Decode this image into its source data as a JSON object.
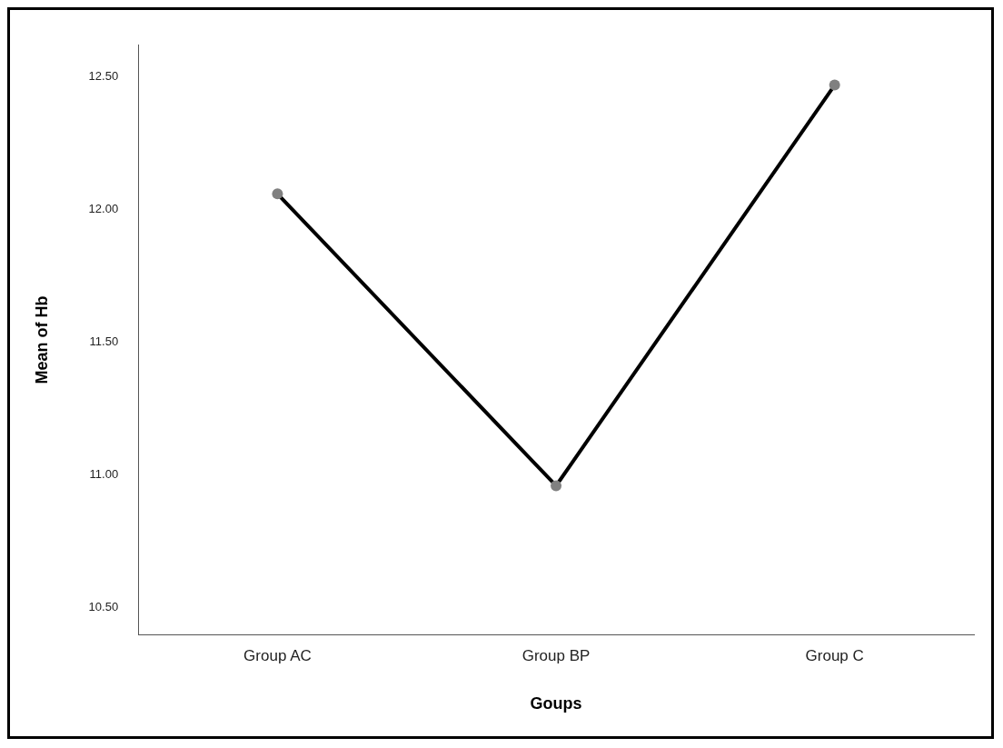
{
  "chart_data": {
    "type": "line",
    "xlabel": "Goups",
    "ylabel": "Mean of Hb",
    "categories": [
      "Group AC",
      "Group BP",
      "Group C"
    ],
    "series": [
      {
        "color": "#000000",
        "values": [
          12.06,
          10.96,
          12.47
        ]
      }
    ],
    "marker": "circle",
    "line_style": "solid",
    "ylim": [
      10.4,
      12.62
    ],
    "yticks": [
      {
        "value": 10.5,
        "label": "10.50"
      },
      {
        "value": 11,
        "label": "11.00"
      },
      {
        "value": 11.5,
        "label": "11.50"
      },
      {
        "value": 12,
        "label": "12.00"
      },
      {
        "value": 12.5,
        "label": "12.50"
      }
    ],
    "grid": false,
    "legend": false
  }
}
